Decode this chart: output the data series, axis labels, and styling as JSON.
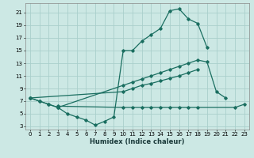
{
  "xlabel": "Humidex (Indice chaleur)",
  "bg_color": "#cce8e4",
  "grid_color": "#aacfcc",
  "line_color": "#1a6e60",
  "xlim": [
    -0.5,
    23.5
  ],
  "ylim": [
    2.5,
    22.5
  ],
  "xticks": [
    0,
    1,
    2,
    3,
    4,
    5,
    6,
    7,
    8,
    9,
    10,
    11,
    12,
    13,
    14,
    15,
    16,
    17,
    18,
    19,
    20,
    21,
    22,
    23
  ],
  "yticks": [
    3,
    5,
    7,
    9,
    11,
    13,
    15,
    17,
    19,
    21
  ],
  "series": [
    {
      "x": [
        0,
        1,
        2,
        3,
        4,
        5,
        6,
        7,
        8,
        9,
        10,
        11,
        12,
        13,
        14,
        15,
        16,
        17,
        18,
        19
      ],
      "y": [
        7.5,
        7.0,
        6.5,
        6.0,
        5.0,
        4.5,
        4.0,
        3.2,
        3.8,
        4.5,
        15.0,
        15.0,
        16.5,
        17.5,
        18.5,
        21.3,
        21.6,
        20.0,
        19.3,
        15.5
      ]
    },
    {
      "x": [
        0,
        1,
        2,
        3,
        10,
        11,
        12,
        13,
        14,
        15,
        16,
        17,
        18,
        19,
        20,
        21
      ],
      "y": [
        7.5,
        7.0,
        6.5,
        6.0,
        9.5,
        10.0,
        10.5,
        11.0,
        11.5,
        12.0,
        12.5,
        13.0,
        13.5,
        13.2,
        8.5,
        7.5
      ]
    },
    {
      "x": [
        0,
        10,
        11,
        12,
        13,
        14,
        15,
        16,
        17,
        18
      ],
      "y": [
        7.5,
        8.5,
        9.0,
        9.5,
        9.8,
        10.2,
        10.6,
        11.0,
        11.5,
        12.0
      ]
    },
    {
      "x": [
        3,
        10,
        11,
        12,
        13,
        14,
        15,
        16,
        17,
        18,
        22,
        23
      ],
      "y": [
        6.2,
        6.0,
        6.0,
        6.0,
        6.0,
        6.0,
        6.0,
        6.0,
        6.0,
        6.0,
        6.0,
        6.5
      ]
    }
  ]
}
